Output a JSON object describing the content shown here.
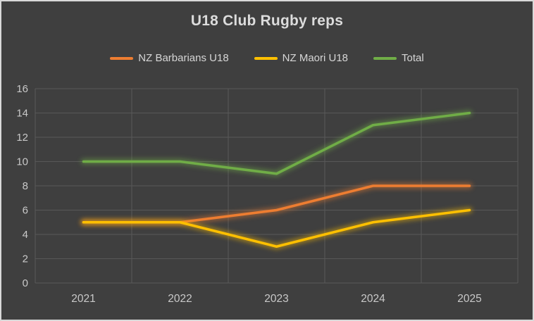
{
  "frame": {
    "background_color": "#3F3F3F",
    "border_color": "#D9D9D9"
  },
  "chart_data": {
    "type": "line",
    "title": "U18 Club Rugby reps",
    "categories": [
      "2021",
      "2022",
      "2023",
      "2024",
      "2025"
    ],
    "series": [
      {
        "name": "NZ Barbarians U18",
        "color": "#ED7D31",
        "values": [
          5,
          5,
          6,
          8,
          8
        ]
      },
      {
        "name": "NZ Maori U18",
        "color": "#FFC000",
        "values": [
          5,
          5,
          3,
          5,
          6
        ]
      },
      {
        "name": "Total",
        "color": "#70AD47",
        "values": [
          10,
          10,
          9,
          13,
          14
        ]
      }
    ],
    "ylim": [
      0,
      16
    ],
    "y_tick_step": 2,
    "y_tick_labels": [
      "0",
      "2",
      "4",
      "6",
      "8",
      "10",
      "12",
      "14",
      "16"
    ],
    "xlabel": "",
    "ylabel": "",
    "grid": true,
    "legend_position": "top",
    "line_glow": true,
    "gridline_color": "#585858",
    "axis_text_color": "#C9C9C9",
    "title_color": "#DCDCDC",
    "legend_text_color": "#D6D6D6"
  }
}
